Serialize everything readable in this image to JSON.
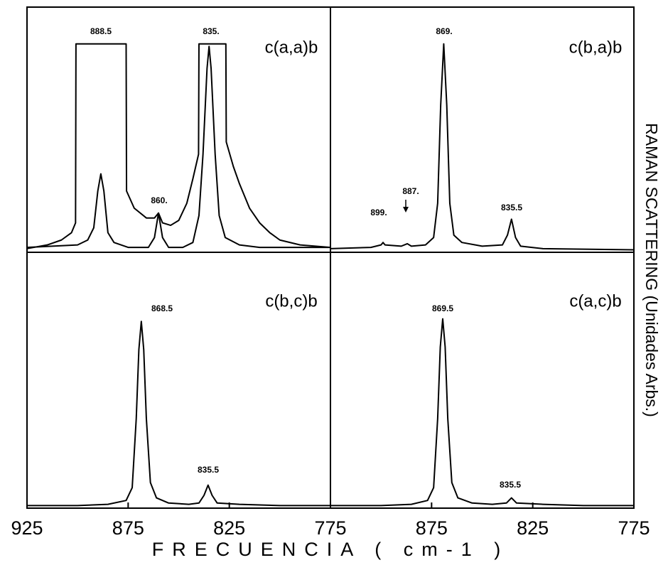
{
  "figure": {
    "xlabel": "FRECUENCIA ( cm-1 )",
    "ylabel": "RAMAN SCATTERING (Unidades Arbs.)"
  },
  "chart_data": [
    {
      "type": "line",
      "label": "c(a,a)b",
      "annotations": [
        "888.5",
        "835.",
        "860."
      ],
      "xlim": [
        925,
        775
      ],
      "ylim": [
        0,
        100
      ],
      "series": [
        {
          "color": "#000000",
          "x": [
            925,
            915,
            908,
            903,
            901,
            900.8,
            876,
            875.8,
            872,
            866,
            862,
            860,
            858,
            854,
            850,
            846,
            843,
            840.2,
            840,
            826.7,
            826.5,
            823,
            820,
            815,
            810,
            805,
            800,
            790,
            775
          ],
          "values": [
            1.5,
            3,
            5,
            8,
            12,
            85,
            85,
            25,
            18,
            14,
            14,
            16,
            12,
            11,
            13,
            20,
            30,
            40,
            85,
            85,
            45,
            35,
            28,
            18,
            12,
            8,
            5,
            3,
            2
          ]
        },
        {
          "color": "#000000",
          "x": [
            925,
            900,
            895,
            892,
            890,
            888.5,
            887,
            885,
            882,
            875,
            865,
            862,
            860,
            858,
            855,
            848,
            843,
            840,
            838,
            836,
            835,
            834,
            832,
            830,
            827,
            820,
            810,
            775
          ],
          "values": [
            2,
            3,
            5,
            10,
            25,
            32,
            25,
            8,
            4,
            2,
            2,
            6,
            16,
            6,
            2,
            2,
            4,
            15,
            40,
            75,
            84,
            75,
            40,
            15,
            6,
            3,
            2,
            2
          ]
        }
      ]
    },
    {
      "type": "line",
      "label": "c(b,a)b",
      "annotations": [
        "869.",
        "899.",
        "887.",
        "835.5"
      ],
      "xlim": [
        925,
        775
      ],
      "ylim": [
        0,
        100
      ],
      "series": [
        {
          "color": "#000000",
          "x": [
            925,
            905,
            900,
            899,
            898,
            890,
            887,
            885,
            878,
            874,
            872,
            870.5,
            869,
            867.5,
            866,
            864,
            860,
            850,
            840,
            837.5,
            835.5,
            833.5,
            831,
            820,
            775
          ],
          "values": [
            1.5,
            2,
            3,
            4,
            3,
            2.5,
            3.5,
            2.5,
            3,
            6,
            20,
            60,
            85,
            60,
            20,
            7,
            4,
            2.5,
            3,
            7,
            13.5,
            6,
            2.5,
            1.5,
            1
          ]
        }
      ]
    },
    {
      "type": "line",
      "label": "c(b,c)b",
      "annotations": [
        "868.5",
        "835.5"
      ],
      "xlim": [
        925,
        775
      ],
      "ylim": [
        0,
        100
      ],
      "xticks": [
        925,
        875,
        825,
        775
      ],
      "series": [
        {
          "color": "#000000",
          "x": [
            925,
            900,
            885,
            876,
            873,
            871,
            869.7,
            868.5,
            867.3,
            866,
            864,
            861,
            855,
            845,
            840,
            837.5,
            835.5,
            833.5,
            831,
            820,
            800,
            775
          ],
          "values": [
            1,
            1,
            1.5,
            3,
            8,
            35,
            62,
            73,
            62,
            35,
            10,
            4,
            2,
            1.5,
            2,
            5,
            9,
            5,
            2,
            1.5,
            1,
            1
          ]
        }
      ]
    },
    {
      "type": "line",
      "label": "c(a,c)b",
      "annotations": [
        "869.5",
        "835.5"
      ],
      "xlim": [
        925,
        775
      ],
      "ylim": [
        0,
        100
      ],
      "xticks": [
        875,
        825,
        775
      ],
      "series": [
        {
          "color": "#000000",
          "x": [
            925,
            900,
            885,
            877,
            874,
            872,
            870.7,
            869.5,
            868.3,
            867,
            865,
            862,
            855,
            845,
            838,
            835.5,
            833,
            820,
            800,
            775
          ],
          "values": [
            1,
            1,
            1.5,
            3,
            8,
            35,
            63,
            74,
            63,
            35,
            10,
            4,
            2,
            1.5,
            2,
            4,
            2,
            1.5,
            1,
            1
          ]
        }
      ]
    }
  ]
}
